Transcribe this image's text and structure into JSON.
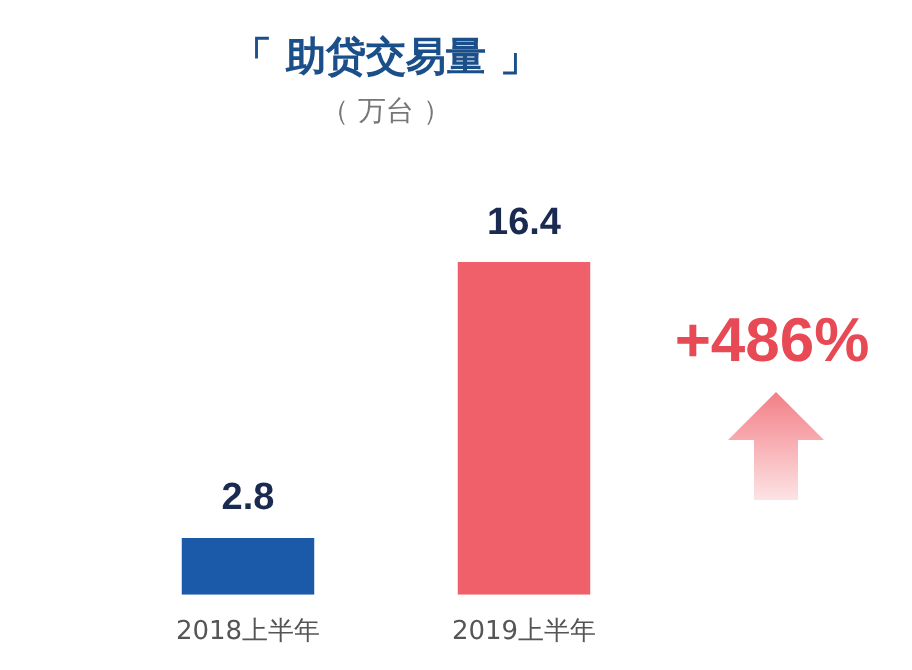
{
  "chart_data": {
    "type": "bar",
    "title": "「 助贷交易量 」",
    "subtitle": "（ 万台 ）",
    "categories": [
      "2018上半年",
      "2019上半年"
    ],
    "values": [
      2.8,
      16.4
    ],
    "colors": [
      "#1a5aa8",
      "#f0606a"
    ],
    "data_labels": true,
    "grid": false,
    "legend": false,
    "tick_labels": "x",
    "annotations": [
      "+486%"
    ]
  }
}
